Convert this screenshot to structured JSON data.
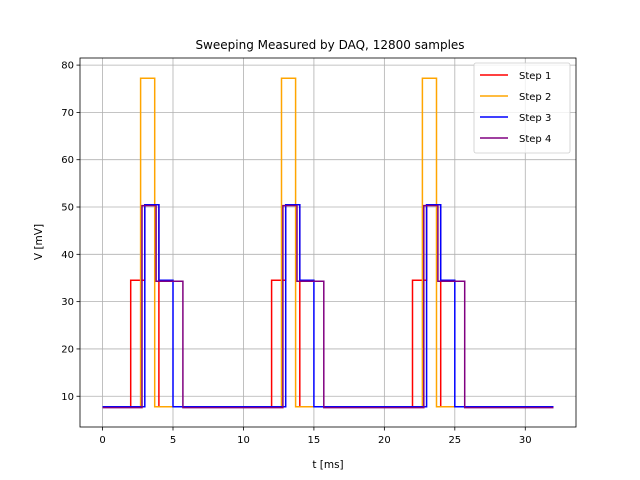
{
  "chart_data": {
    "type": "line",
    "title": "Sweeping Measured by DAQ,  12800 samples",
    "xlabel": "t  [ms]",
    "ylabel": "V  [mV]",
    "xlim": [
      -1.6,
      33.6
    ],
    "ylim": [
      3.5,
      81.5
    ],
    "xticks": [
      0,
      5,
      10,
      15,
      20,
      25,
      30
    ],
    "yticks": [
      10,
      20,
      30,
      40,
      50,
      60,
      70,
      80
    ],
    "grid": true,
    "legend": "upper right",
    "series": [
      {
        "name": "Step 1",
        "color": "#ff0000",
        "x": [
          0,
          2.0,
          2.0,
          3.0,
          3.0,
          4.0,
          4.0,
          12.0,
          12.0,
          13.0,
          13.0,
          14.0,
          14.0,
          22.0,
          22.0,
          23.0,
          23.0,
          24.0,
          24.0,
          32.0
        ],
        "y": [
          7.8,
          7.8,
          34.5,
          34.5,
          50.5,
          50.5,
          7.8,
          7.8,
          34.5,
          34.5,
          50.5,
          50.5,
          7.8,
          7.8,
          34.5,
          34.5,
          50.5,
          50.5,
          7.8,
          7.8
        ]
      },
      {
        "name": "Step 2",
        "color": "#ffa500",
        "x": [
          0,
          2.7,
          2.7,
          3.7,
          3.7,
          12.7,
          12.7,
          13.7,
          13.7,
          22.7,
          22.7,
          23.7,
          23.7,
          32.0
        ],
        "y": [
          7.8,
          7.8,
          77.2,
          77.2,
          7.8,
          7.8,
          77.2,
          77.2,
          7.8,
          7.8,
          77.2,
          77.2,
          7.8,
          7.8
        ]
      },
      {
        "name": "Step 3",
        "color": "#0000ff",
        "x": [
          0,
          3.0,
          3.0,
          4.0,
          4.0,
          5.0,
          5.0,
          13.0,
          13.0,
          14.0,
          14.0,
          15.0,
          15.0,
          23.0,
          23.0,
          24.0,
          24.0,
          25.0,
          25.0,
          32.0
        ],
        "y": [
          7.8,
          7.8,
          50.5,
          50.5,
          34.5,
          34.5,
          7.8,
          7.8,
          50.5,
          50.5,
          34.5,
          34.5,
          7.8,
          7.8,
          50.5,
          50.5,
          34.5,
          34.5,
          7.8,
          7.8
        ]
      },
      {
        "name": "Step 4",
        "color": "#800080",
        "x": [
          0,
          2.8,
          2.8,
          3.8,
          3.8,
          5.7,
          5.7,
          12.8,
          12.8,
          13.8,
          13.8,
          15.7,
          15.7,
          22.8,
          22.8,
          23.8,
          23.8,
          25.7,
          25.7,
          32.0
        ],
        "y": [
          7.6,
          7.6,
          50.3,
          50.3,
          34.3,
          34.3,
          7.6,
          7.6,
          50.3,
          50.3,
          34.3,
          34.3,
          7.6,
          7.6,
          50.3,
          50.3,
          34.3,
          34.3,
          7.6,
          7.6
        ]
      }
    ]
  }
}
